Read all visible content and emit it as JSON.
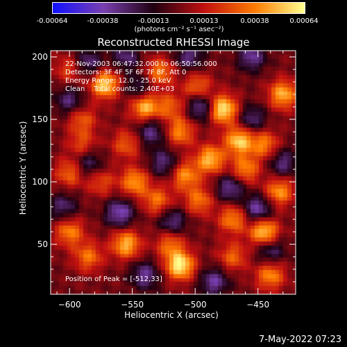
{
  "chart_data": {
    "type": "heatmap",
    "title": "Reconstructed RHESSI Image",
    "xlabel": "Heliocentric X (arcsec)",
    "ylabel": "Heliocentric Y (arcsec)",
    "xlim": [
      -615,
      -420
    ],
    "ylim": [
      10,
      205
    ],
    "xticks": [
      -600,
      -550,
      -500,
      -450
    ],
    "yticks": [
      50,
      100,
      150,
      200
    ],
    "colorbar": {
      "ticks": [
        "-0.00064",
        "-0.00038",
        "-0.00013",
        "0.00013",
        "0.00038",
        "0.00064"
      ],
      "units": "(photons cm⁻² s⁻¹ asec⁻²)",
      "range": [
        -0.00064,
        0.00064
      ],
      "colors": [
        "#1212ff",
        "#7a3fb0",
        "#200010",
        "#c01010",
        "#ff7a00",
        "#ffff90"
      ]
    },
    "annotations": [
      "22-Nov-2003 06:47:32.000 to 06:50:56.000",
      "Detectors: 3F 4F 5F 6F 7F 8F, Att 0",
      "Energy Range: 12.0 - 25.0 keV",
      "Clean    Total counts: 2.40E+03"
    ],
    "peak_label": "Position of Peak = [-512,33]",
    "peak": [
      -512,
      33
    ],
    "bright_sources": [
      [
        -572,
        178,
        0.00058
      ],
      [
        -540,
        160,
        0.00052
      ],
      [
        -528,
        188,
        0.00038
      ],
      [
        -498,
        176,
        0.00034
      ],
      [
        -478,
        158,
        0.00064
      ],
      [
        -465,
        133,
        0.00056
      ],
      [
        -430,
        170,
        0.0005
      ],
      [
        -445,
        130,
        0.00038
      ],
      [
        -512,
        140,
        0.0004
      ],
      [
        -555,
        130,
        0.0003
      ],
      [
        -590,
        130,
        0.00026
      ],
      [
        -600,
        107,
        0.00034
      ],
      [
        -575,
        100,
        0.00026
      ],
      [
        -548,
        100,
        0.00044
      ],
      [
        -508,
        105,
        0.00042
      ],
      [
        -488,
        118,
        0.00052
      ],
      [
        -460,
        110,
        0.0004
      ],
      [
        -433,
        92,
        0.00044
      ],
      [
        -445,
        60,
        0.00058
      ],
      [
        -470,
        70,
        0.0004
      ],
      [
        -497,
        85,
        0.00036
      ],
      [
        -530,
        85,
        0.00036
      ],
      [
        -600,
        60,
        0.0004
      ],
      [
        -585,
        40,
        0.00036
      ],
      [
        -555,
        50,
        0.0005
      ],
      [
        -520,
        50,
        0.00034
      ],
      [
        -512,
        33,
        0.00064
      ],
      [
        -470,
        40,
        0.00032
      ],
      [
        -440,
        25,
        0.00042
      ],
      [
        -590,
        150,
        0.0003
      ],
      [
        -600,
        190,
        0.00026
      ],
      [
        -520,
        160,
        0.0003
      ]
    ],
    "dim_sources": [
      [
        -585,
        195,
        -0.00032
      ],
      [
        -555,
        200,
        -0.00028
      ],
      [
        -505,
        200,
        -0.0003
      ],
      [
        -455,
        200,
        -0.00034
      ],
      [
        -545,
        175,
        -0.00026
      ],
      [
        -495,
        160,
        -0.00038
      ],
      [
        -455,
        150,
        -0.0003
      ],
      [
        -535,
        140,
        -0.00032
      ],
      [
        -600,
        165,
        -0.0003
      ],
      [
        -585,
        115,
        -0.00028
      ],
      [
        -525,
        115,
        -0.0003
      ],
      [
        -472,
        95,
        -0.00034
      ],
      [
        -430,
        115,
        -0.0003
      ],
      [
        -560,
        75,
        -0.0004
      ],
      [
        -518,
        68,
        -0.00032
      ],
      [
        -450,
        78,
        -0.0004
      ],
      [
        -605,
        80,
        -0.00028
      ],
      [
        -540,
        25,
        -0.00034
      ],
      [
        -485,
        20,
        -0.00036
      ],
      [
        -440,
        45,
        -0.0003
      ]
    ]
  },
  "footer": {
    "timestamp": "7-May-2022 07:23"
  }
}
